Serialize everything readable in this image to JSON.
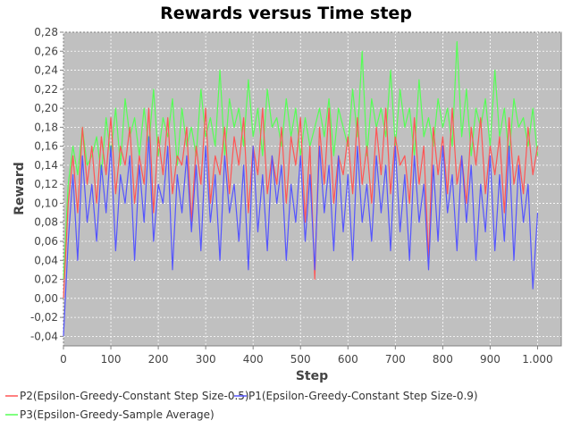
{
  "chart_data": {
    "type": "line",
    "title": "Rewards versus Time step",
    "xlabel": "Step",
    "ylabel": "Reward",
    "xlim": [
      0,
      1050
    ],
    "ylim": [
      -0.05,
      0.28
    ],
    "x_ticks": [
      0,
      100,
      200,
      300,
      400,
      500,
      600,
      700,
      800,
      900,
      1000
    ],
    "x_tick_labels": [
      "0",
      "100",
      "200",
      "300",
      "400",
      "500",
      "600",
      "700",
      "800",
      "900",
      "1.000"
    ],
    "y_ticks": [
      -0.04,
      -0.02,
      0.0,
      0.02,
      0.04,
      0.06,
      0.08,
      0.1,
      0.12,
      0.14,
      0.16,
      0.18,
      0.2,
      0.22,
      0.24,
      0.26,
      0.28
    ],
    "y_tick_labels": [
      "-0,04",
      "-0,02",
      "0,00",
      "0,02",
      "0,04",
      "0,06",
      "0,08",
      "0,10",
      "0,12",
      "0,14",
      "0,16",
      "0,18",
      "0,20",
      "0,22",
      "0,24",
      "0,26",
      "0,28"
    ],
    "grid": true,
    "legend_position": "bottom",
    "plot_background": "#c0c0c0",
    "x": [
      0,
      10,
      20,
      30,
      40,
      50,
      60,
      70,
      80,
      90,
      100,
      110,
      120,
      130,
      140,
      150,
      160,
      170,
      180,
      190,
      200,
      210,
      220,
      230,
      240,
      250,
      260,
      270,
      280,
      290,
      300,
      310,
      320,
      330,
      340,
      350,
      360,
      370,
      380,
      390,
      400,
      410,
      420,
      430,
      440,
      450,
      460,
      470,
      480,
      490,
      500,
      510,
      520,
      530,
      540,
      550,
      560,
      570,
      580,
      590,
      600,
      610,
      620,
      630,
      640,
      650,
      660,
      670,
      680,
      690,
      700,
      710,
      720,
      730,
      740,
      750,
      760,
      770,
      780,
      790,
      800,
      810,
      820,
      830,
      840,
      850,
      860,
      870,
      880,
      890,
      900,
      910,
      920,
      930,
      940,
      950,
      960,
      970,
      980,
      990,
      1000
    ],
    "series": [
      {
        "name": "P3(Epsilon-Greedy-Sample Average)",
        "color": "#55ff55",
        "values": [
          0.02,
          0.12,
          0.16,
          0.13,
          0.18,
          0.14,
          0.15,
          0.17,
          0.13,
          0.19,
          0.15,
          0.2,
          0.14,
          0.21,
          0.17,
          0.19,
          0.15,
          0.2,
          0.16,
          0.22,
          0.15,
          0.19,
          0.17,
          0.21,
          0.14,
          0.2,
          0.16,
          0.18,
          0.15,
          0.22,
          0.17,
          0.19,
          0.16,
          0.24,
          0.15,
          0.21,
          0.18,
          0.2,
          0.16,
          0.23,
          0.17,
          0.2,
          0.15,
          0.22,
          0.18,
          0.19,
          0.16,
          0.21,
          0.17,
          0.2,
          0.15,
          0.19,
          0.16,
          0.18,
          0.2,
          0.17,
          0.21,
          0.15,
          0.2,
          0.18,
          0.16,
          0.22,
          0.17,
          0.26,
          0.15,
          0.21,
          0.18,
          0.2,
          0.17,
          0.24,
          0.16,
          0.22,
          0.18,
          0.2,
          0.15,
          0.23,
          0.17,
          0.19,
          0.16,
          0.21,
          0.18,
          0.2,
          0.16,
          0.27,
          0.17,
          0.22,
          0.15,
          0.2,
          0.18,
          0.21,
          0.16,
          0.24,
          0.17,
          0.2,
          0.15,
          0.21,
          0.18,
          0.19,
          0.16,
          0.2,
          0.15
        ]
      },
      {
        "name": "P2(Epsilon-Greedy-Constant Step Size-0.5)",
        "color": "#ff5555",
        "values": [
          0.0,
          0.1,
          0.15,
          0.09,
          0.18,
          0.12,
          0.16,
          0.1,
          0.17,
          0.13,
          0.19,
          0.11,
          0.16,
          0.14,
          0.18,
          0.1,
          0.15,
          0.12,
          0.2,
          0.09,
          0.17,
          0.13,
          0.19,
          0.11,
          0.15,
          0.14,
          0.18,
          0.08,
          0.16,
          0.12,
          0.2,
          0.1,
          0.15,
          0.13,
          0.18,
          0.11,
          0.17,
          0.14,
          0.19,
          0.09,
          0.16,
          0.13,
          0.2,
          0.11,
          0.15,
          0.12,
          0.18,
          0.1,
          0.17,
          0.14,
          0.19,
          0.08,
          0.16,
          0.02,
          0.18,
          0.12,
          0.2,
          0.1,
          0.15,
          0.13,
          0.17,
          0.11,
          0.19,
          0.12,
          0.16,
          0.1,
          0.18,
          0.13,
          0.2,
          0.11,
          0.17,
          0.14,
          0.15,
          0.1,
          0.19,
          0.12,
          0.16,
          0.04,
          0.18,
          0.13,
          0.17,
          0.11,
          0.2,
          0.12,
          0.15,
          0.1,
          0.18,
          0.14,
          0.19,
          0.11,
          0.16,
          0.13,
          0.17,
          0.09,
          0.19,
          0.12,
          0.15,
          0.11,
          0.18,
          0.13,
          0.16
        ]
      },
      {
        "name": "P1(Epsilon-Greedy-Constant Step Size-0.9)",
        "color": "#5555ff",
        "values": [
          -0.04,
          0.06,
          0.13,
          0.04,
          0.15,
          0.08,
          0.12,
          0.06,
          0.14,
          0.09,
          0.16,
          0.05,
          0.13,
          0.1,
          0.15,
          0.04,
          0.14,
          0.08,
          0.17,
          0.06,
          0.12,
          0.1,
          0.16,
          0.03,
          0.13,
          0.09,
          0.15,
          0.07,
          0.14,
          0.05,
          0.16,
          0.08,
          0.13,
          0.04,
          0.15,
          0.09,
          0.12,
          0.06,
          0.14,
          0.03,
          0.16,
          0.07,
          0.13,
          0.05,
          0.15,
          0.1,
          0.14,
          0.04,
          0.12,
          0.08,
          0.15,
          0.06,
          0.13,
          0.03,
          0.16,
          0.09,
          0.14,
          0.05,
          0.15,
          0.07,
          0.13,
          0.04,
          0.16,
          0.08,
          0.12,
          0.06,
          0.15,
          0.09,
          0.14,
          0.05,
          0.16,
          0.07,
          0.13,
          0.04,
          0.15,
          0.08,
          0.12,
          0.03,
          0.14,
          0.06,
          0.16,
          0.09,
          0.13,
          0.05,
          0.15,
          0.08,
          0.14,
          0.04,
          0.12,
          0.07,
          0.15,
          0.05,
          0.13,
          0.06,
          0.16,
          0.04,
          0.14,
          0.08,
          0.12,
          0.01,
          0.09
        ]
      }
    ],
    "legend_order": [
      1,
      2,
      0
    ]
  }
}
